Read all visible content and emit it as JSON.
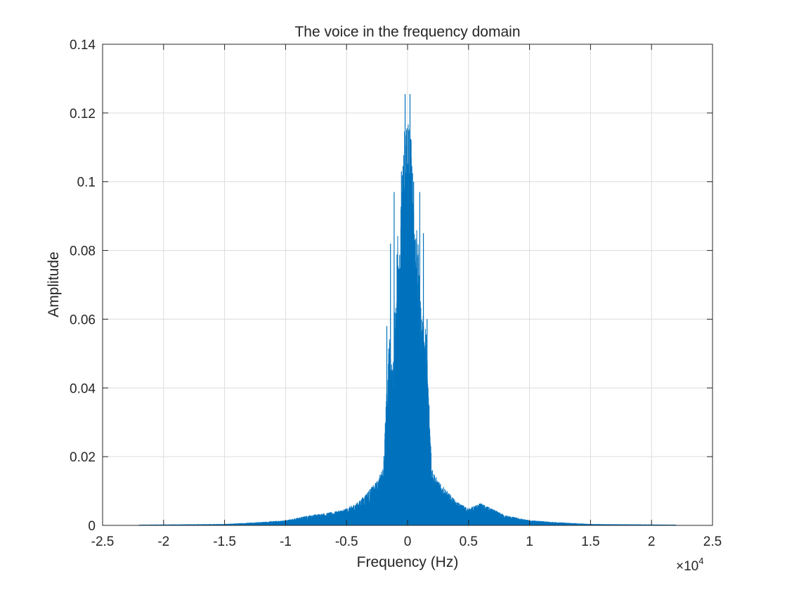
{
  "chart_data": {
    "type": "line",
    "title": "The voice in the frequency domain",
    "xlabel": "Frequency (Hz)",
    "ylabel": "Amplitude",
    "x_scale_multiplier": "×10",
    "x_scale_exponent": "4",
    "xlim": [
      -2.5,
      2.5
    ],
    "ylim": [
      0,
      0.14
    ],
    "xticks": [
      -2.5,
      -2,
      -1.5,
      -1,
      -0.5,
      0,
      0.5,
      1,
      1.5,
      2,
      2.5
    ],
    "xtick_labels": [
      "-2.5",
      "-2",
      "-1.5",
      "-1",
      "-0.5",
      "0",
      "0.5",
      "1",
      "1.5",
      "2",
      "2.5"
    ],
    "yticks": [
      0,
      0.02,
      0.04,
      0.06,
      0.08,
      0.1,
      0.12,
      0.14
    ],
    "ytick_labels": [
      "0",
      "0.02",
      "0.04",
      "0.06",
      "0.08",
      "0.1",
      "0.12",
      "0.14"
    ],
    "grid": true,
    "line_color": "#0072BD",
    "series": [
      {
        "x_range": [
          -2.2,
          2.2
        ],
        "envelope_x": [
          -2.2,
          -1.5,
          -1.2,
          -1.0,
          -0.8,
          -0.6,
          -0.5,
          -0.4,
          -0.3,
          -0.25,
          -0.2,
          -0.15,
          -0.12,
          -0.1,
          -0.08,
          -0.05,
          -0.03,
          0,
          0.03,
          0.05,
          0.08,
          0.1,
          0.12,
          0.15,
          0.2,
          0.25,
          0.3,
          0.4,
          0.5,
          0.6,
          0.8,
          1.0,
          1.2,
          1.5,
          2.2
        ],
        "envelope_y": [
          0.0002,
          0.0004,
          0.001,
          0.0015,
          0.003,
          0.004,
          0.005,
          0.007,
          0.011,
          0.013,
          0.017,
          0.056,
          0.045,
          0.066,
          0.09,
          0.095,
          0.115,
          0.1255,
          0.115,
          0.095,
          0.09,
          0.068,
          0.062,
          0.059,
          0.017,
          0.013,
          0.011,
          0.007,
          0.005,
          0.0065,
          0.003,
          0.0015,
          0.001,
          0.0004,
          0.0002
        ]
      }
    ]
  }
}
